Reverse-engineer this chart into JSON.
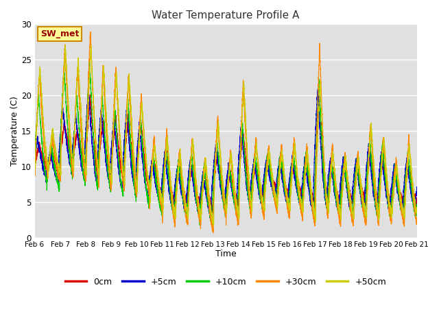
{
  "title": "Water Temperature Profile A",
  "xlabel": "Time",
  "ylabel": "Temperature (C)",
  "ylim": [
    0,
    30
  ],
  "xlim": [
    0,
    360
  ],
  "plot_bg_color": "#e0e0e0",
  "annotation_text": "SW_met",
  "annotation_color": "#990000",
  "annotation_bg": "#ffff99",
  "annotation_border": "#cc8800",
  "series_colors": [
    "#dd0000",
    "#0000cc",
    "#00cc00",
    "#ff8800",
    "#cccc00"
  ],
  "series_labels": [
    "0cm",
    "+5cm",
    "+10cm",
    "+30cm",
    "+50cm"
  ],
  "tick_labels": [
    "Feb 6",
    "Feb 7",
    "Feb 8",
    "Feb 9",
    "Feb 10",
    "Feb 11",
    "Feb 12",
    "Feb 13",
    "Feb 14",
    "Feb 15",
    "Feb 16",
    "Feb 17",
    "Feb 18",
    "Feb 19",
    "Feb 20",
    "Feb 21"
  ],
  "tick_positions": [
    0,
    24,
    48,
    72,
    96,
    120,
    144,
    168,
    192,
    216,
    240,
    264,
    288,
    312,
    336,
    360
  ],
  "yticks": [
    0,
    5,
    10,
    15,
    20,
    25,
    30
  ]
}
